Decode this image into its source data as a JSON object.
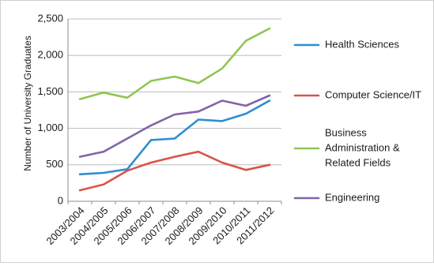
{
  "chart_data": {
    "type": "line",
    "title": "",
    "xlabel": "",
    "ylabel": "Number of University Graduates",
    "ylim": [
      0,
      2500
    ],
    "yticks": [
      0,
      500,
      1000,
      1500,
      2000,
      2500
    ],
    "ytick_labels": [
      "0",
      "500",
      "1,000",
      "1,500",
      "2,000",
      "2,500"
    ],
    "grid": true,
    "legend_position": "right",
    "categories": [
      "2003/2004",
      "2004/2005",
      "2005/2006",
      "2006/2007",
      "2007/2008",
      "2008/2009",
      "2009/2010",
      "2010/2011",
      "2011/2012"
    ],
    "series": [
      {
        "name": "Health Sciences",
        "name_lines": [
          "Health Sciences"
        ],
        "color": "#2e8fcf",
        "values": [
          370,
          390,
          440,
          840,
          860,
          1120,
          1100,
          1200,
          1380
        ]
      },
      {
        "name": "Computer Science/IT",
        "name_lines": [
          "Computer Science/IT"
        ],
        "color": "#d9534a",
        "values": [
          150,
          230,
          420,
          530,
          610,
          680,
          530,
          430,
          500
        ]
      },
      {
        "name": "Business Administration & Related Fields",
        "name_lines": [
          "Business",
          "Administration &",
          "Related Fields"
        ],
        "color": "#92c454",
        "values": [
          1400,
          1490,
          1420,
          1650,
          1710,
          1620,
          1820,
          2200,
          2370
        ]
      },
      {
        "name": "Engineering",
        "name_lines": [
          "Engineering"
        ],
        "color": "#8064a8",
        "values": [
          610,
          680,
          860,
          1040,
          1190,
          1230,
          1380,
          1310,
          1450
        ]
      }
    ]
  }
}
